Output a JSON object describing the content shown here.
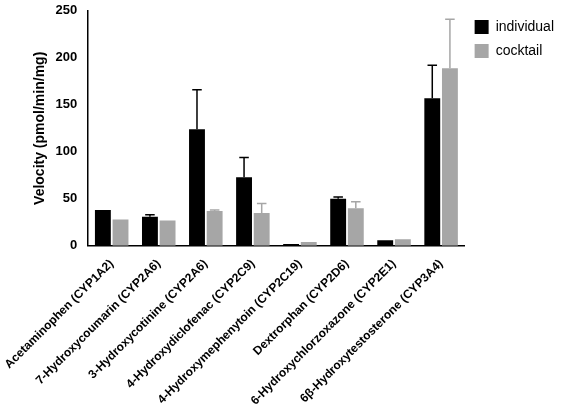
{
  "chart_data": {
    "type": "bar",
    "y_label": "Velocity (pmol/min/mg)",
    "categories": [
      "Acetaminophen (CYP1A2)",
      "7-Hydroxycoumarin (CYP2A6)",
      "3-Hydroxycotinine (CYP2A6)",
      "4-Hydroxydiclofenac (CYP2C9)",
      "4-Hydroxymephenytoin (CYP2C19)",
      "Dextrorphan (CYP2D6)",
      "6-Hydroxychlorzoxazone (CYP2E1)",
      "6β-Hydroxytestosterone (CYP3A4)"
    ],
    "series": [
      {
        "name": "individual",
        "color": "#000000",
        "values": [
          38,
          31,
          124,
          73,
          2,
          50,
          6,
          157
        ],
        "errors": [
          0,
          2,
          42,
          21,
          0,
          2,
          0,
          35
        ]
      },
      {
        "name": "cocktail",
        "color": "#a6a6a6",
        "values": [
          28,
          27,
          37,
          35,
          4,
          40,
          7,
          189
        ],
        "errors": [
          0,
          0,
          1,
          10,
          0,
          7,
          0,
          52
        ]
      }
    ],
    "ylim": [
      0,
      250
    ],
    "yticks": [
      0,
      50,
      100,
      150,
      200,
      250
    ],
    "grid": false,
    "legend": "top right"
  }
}
